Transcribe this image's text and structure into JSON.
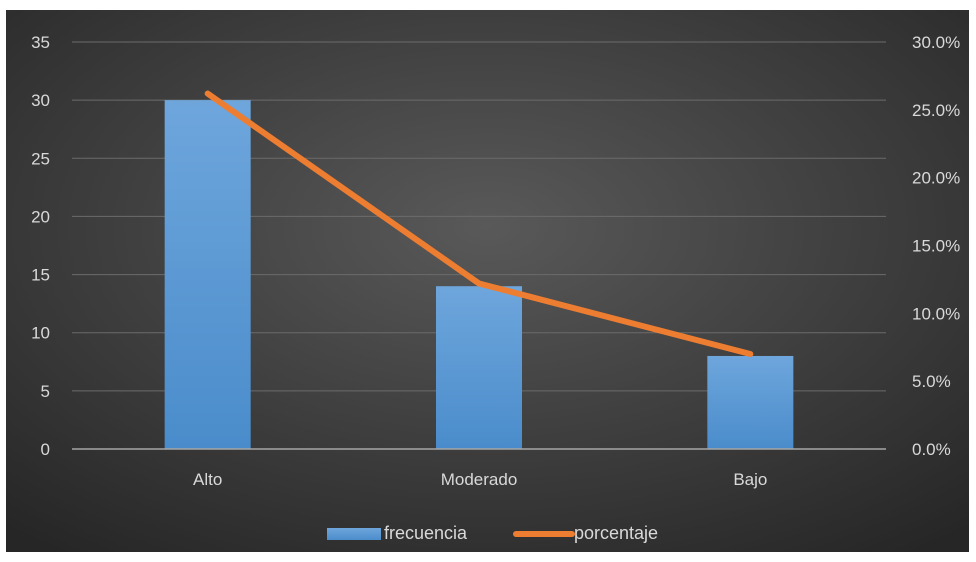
{
  "chart_data": {
    "type": "bar",
    "categories": [
      "Alto",
      "Moderado",
      "Bajo"
    ],
    "series": [
      {
        "name": "frecuencia",
        "type": "bar",
        "axis": "left",
        "values": [
          30,
          14,
          8
        ],
        "color": "#5b9bd5"
      },
      {
        "name": "porcentaje",
        "type": "line",
        "axis": "right",
        "values": [
          0.262,
          0.122,
          0.07
        ],
        "color": "#ed7d31"
      }
    ],
    "y_left": {
      "min": 0,
      "max": 35,
      "step": 5,
      "ticks": [
        "0",
        "5",
        "10",
        "15",
        "20",
        "25",
        "30",
        "35"
      ]
    },
    "y_right": {
      "min": 0,
      "max": 0.3,
      "step": 0.05,
      "ticks": [
        "0.0%",
        "5.0%",
        "10.0%",
        "15.0%",
        "20.0%",
        "25.0%",
        "30.0%"
      ]
    },
    "grid": true,
    "legend_position": "bottom",
    "background": "#3a3a3a"
  }
}
